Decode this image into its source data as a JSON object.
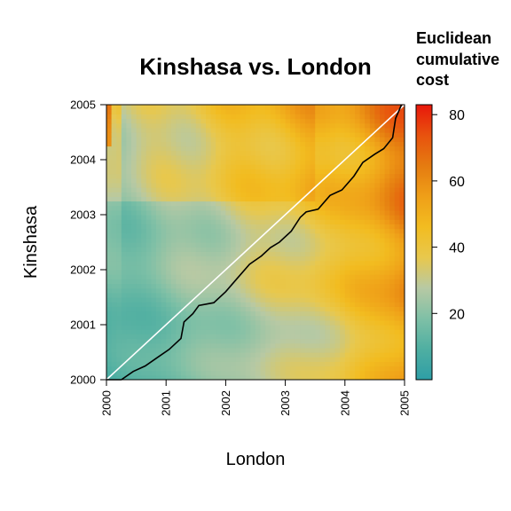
{
  "chart_data": {
    "type": "heatmap",
    "title": "Kinshasa vs. London",
    "xlabel": "London",
    "ylabel": "Kinshasa",
    "x_ticks": [
      "2000",
      "2001",
      "2002",
      "2003",
      "2004",
      "2005"
    ],
    "y_ticks": [
      "2000",
      "2001",
      "2002",
      "2003",
      "2004",
      "2005"
    ],
    "xlim": [
      2000,
      2005
    ],
    "ylim": [
      2000,
      2005
    ],
    "legend": {
      "title_lines": [
        "Euclidean",
        "cumulative",
        "cost"
      ],
      "ticks": [
        "20",
        "40",
        "60",
        "80"
      ],
      "range": [
        0,
        83
      ],
      "placement": "right",
      "colors": [
        "#2e9ea6",
        "#4fafa2",
        "#7fc0a6",
        "#b7c9a4",
        "#e8c84d",
        "#f2bc20",
        "#ef9f18",
        "#e57b10",
        "#e8520e",
        "#e8170b"
      ]
    },
    "diagonal": {
      "color": "#ffffff",
      "from": [
        2000,
        2000
      ],
      "to": [
        2005,
        2005
      ]
    },
    "warping_path": {
      "color": "#000000",
      "points": [
        [
          2000.0,
          2000.0
        ],
        [
          2000.25,
          2000.0
        ],
        [
          2000.45,
          2000.15
        ],
        [
          2000.65,
          2000.25
        ],
        [
          2000.85,
          2000.4
        ],
        [
          2001.05,
          2000.55
        ],
        [
          2001.25,
          2000.75
        ],
        [
          2001.3,
          2001.05
        ],
        [
          2001.45,
          2001.2
        ],
        [
          2001.55,
          2001.35
        ],
        [
          2001.8,
          2001.4
        ],
        [
          2002.0,
          2001.6
        ],
        [
          2002.2,
          2001.85
        ],
        [
          2002.4,
          2002.1
        ],
        [
          2002.6,
          2002.25
        ],
        [
          2002.75,
          2002.4
        ],
        [
          2002.9,
          2002.5
        ],
        [
          2003.1,
          2002.7
        ],
        [
          2003.25,
          2002.95
        ],
        [
          2003.35,
          2003.05
        ],
        [
          2003.55,
          2003.1
        ],
        [
          2003.75,
          2003.35
        ],
        [
          2003.95,
          2003.45
        ],
        [
          2004.15,
          2003.7
        ],
        [
          2004.3,
          2003.95
        ],
        [
          2004.5,
          2004.1
        ],
        [
          2004.65,
          2004.2
        ],
        [
          2004.8,
          2004.4
        ],
        [
          2004.85,
          2004.75
        ],
        [
          2004.95,
          2005.0
        ]
      ]
    }
  }
}
